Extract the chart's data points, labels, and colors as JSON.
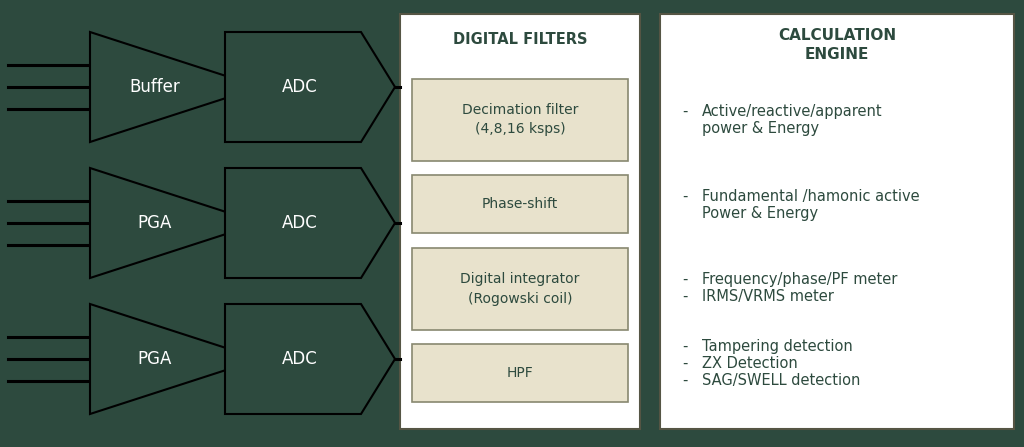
{
  "bg_color": "#2d4a3e",
  "panel_bg": "#c8c8b0",
  "dark_green": "#2d4a3e",
  "white": "#ffffff",
  "light_beige": "#e8e2cc",
  "box_border": "#8a8a6a",
  "text_dark": "#3a3a2a",
  "text_green": "#2d4a3e",
  "arrow_rows": [
    {
      "label1": "Buffer",
      "label2": "ADC"
    },
    {
      "label1": "PGA",
      "label2": "ADC"
    },
    {
      "label1": "PGA",
      "label2": "ADC"
    }
  ],
  "digital_filters_title": "DIGITAL FILTERS",
  "filter_boxes": [
    {
      "label": "Decimation filter\n(4,8,16 ksps)"
    },
    {
      "label": "Phase-shift"
    },
    {
      "label": "Digital integrator\n(Rogowski coil)"
    },
    {
      "label": "HPF"
    }
  ],
  "calc_engine_title": "CALCULATION\nENGINE",
  "calc_bullet_groups": [
    [
      "Active/reactive/apparent",
      "power & Energy"
    ],
    [
      "Fundamental /hamonic active",
      "Power & Energy"
    ],
    [
      "Frequency/phase/PF meter",
      "IRMS/VRMS meter"
    ],
    [
      "Tampering detection",
      "ZX Detection",
      "SAG/SWELL detection"
    ]
  ],
  "calc_bullet_has_dash": [
    true,
    true,
    true,
    true
  ],
  "calc_bullet_multi_dash": [
    false,
    false,
    true,
    true
  ]
}
